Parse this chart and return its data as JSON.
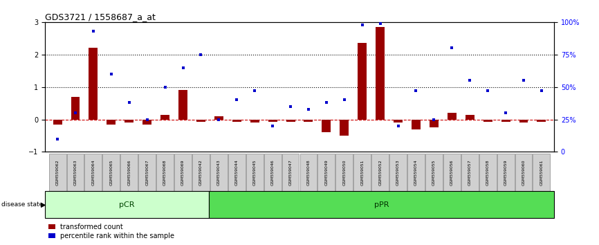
{
  "title": "GDS3721 / 1558687_a_at",
  "samples": [
    "GSM559062",
    "GSM559063",
    "GSM559064",
    "GSM559065",
    "GSM559066",
    "GSM559067",
    "GSM559068",
    "GSM559069",
    "GSM559042",
    "GSM559043",
    "GSM559044",
    "GSM559045",
    "GSM559046",
    "GSM559047",
    "GSM559048",
    "GSM559049",
    "GSM559050",
    "GSM559051",
    "GSM559052",
    "GSM559053",
    "GSM559054",
    "GSM559055",
    "GSM559056",
    "GSM559057",
    "GSM559058",
    "GSM559059",
    "GSM559060",
    "GSM559061"
  ],
  "transformed_count": [
    -0.15,
    0.7,
    2.2,
    -0.15,
    -0.1,
    -0.15,
    0.15,
    0.9,
    -0.08,
    0.1,
    -0.08,
    -0.1,
    -0.08,
    -0.08,
    -0.08,
    -0.4,
    -0.5,
    2.35,
    2.85,
    -0.1,
    -0.3,
    -0.25,
    0.2,
    0.15,
    -0.08,
    -0.08,
    -0.1,
    -0.08
  ],
  "percentile_rank": [
    10,
    30,
    93,
    60,
    38,
    25,
    50,
    65,
    75,
    25,
    40,
    47,
    20,
    35,
    33,
    38,
    40,
    98,
    99,
    20,
    47,
    25,
    80,
    55,
    47,
    30,
    55,
    47
  ],
  "pCR_count": 9,
  "pPR_count": 19,
  "bar_color": "#990000",
  "scatter_color": "#0000cc",
  "ylim_left": [
    -1,
    3
  ],
  "ylim_right": [
    0,
    100
  ],
  "yticks_left": [
    -1,
    0,
    1,
    2,
    3
  ],
  "yticks_right": [
    0,
    25,
    50,
    75,
    100
  ],
  "ytick_labels_right": [
    "0",
    "25%",
    "50%",
    "75%",
    "100%"
  ],
  "hline_y": [
    0,
    1,
    2
  ],
  "hline_styles": [
    "--",
    ":",
    ":"
  ],
  "hline_colors": [
    "#cc0000",
    "#000000",
    "#000000"
  ],
  "pCR_color_light": "#ccffcc",
  "pPR_color": "#55dd55",
  "label_transformed": "transformed count",
  "label_percentile": "percentile rank within the sample"
}
